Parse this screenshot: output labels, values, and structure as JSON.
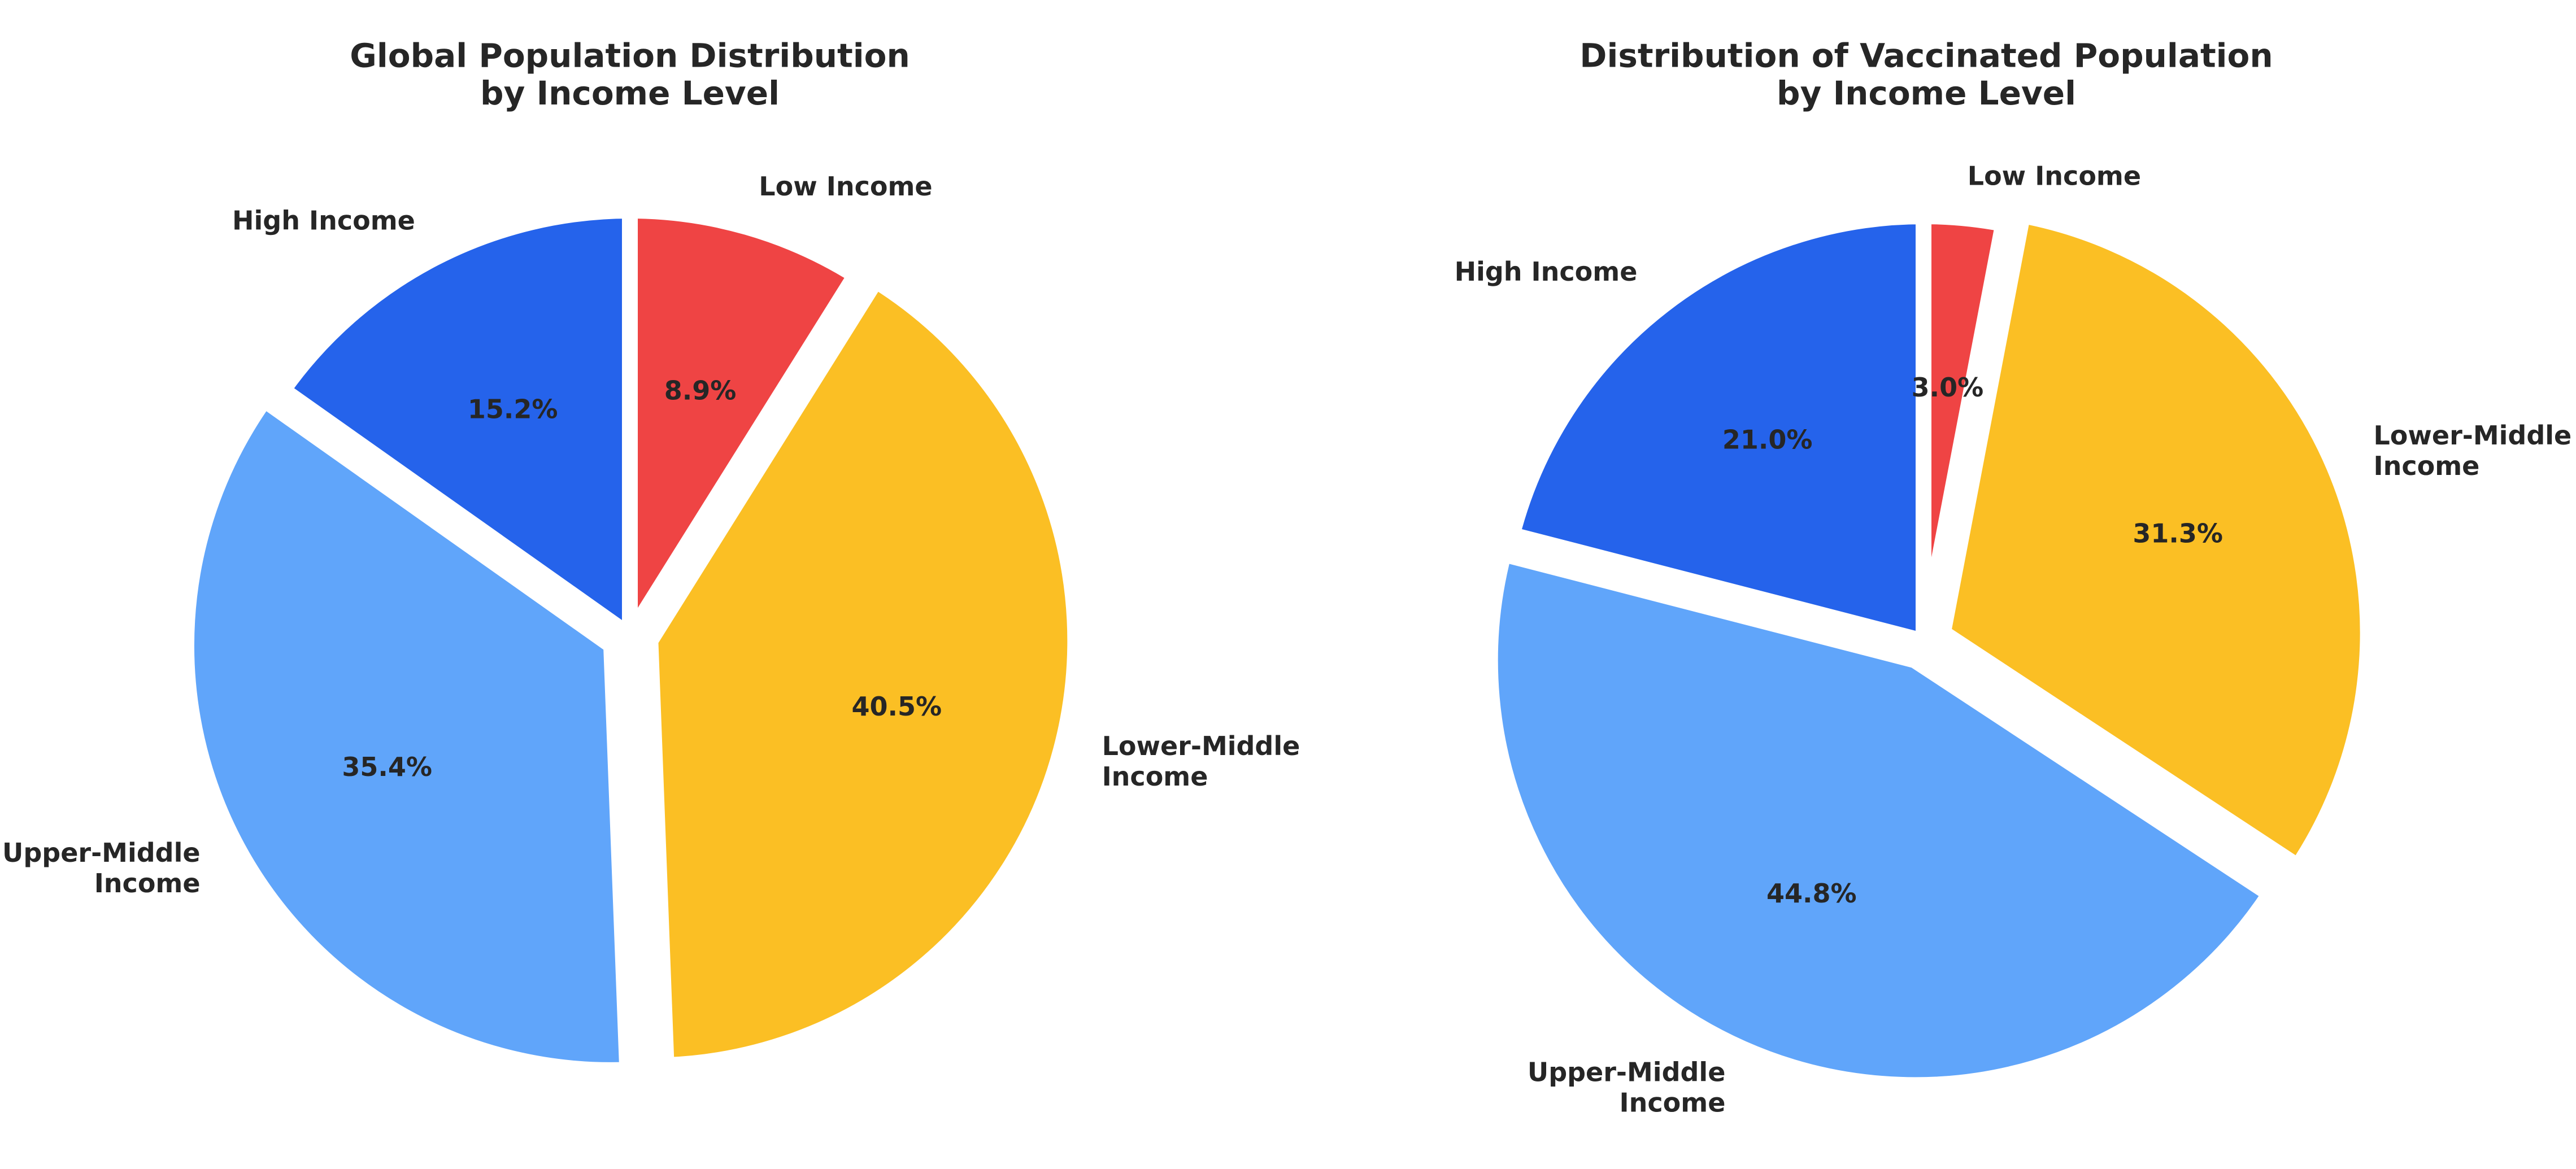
{
  "chart_data": [
    {
      "type": "pie",
      "title": [
        "Global Population Distribution",
        "by Income Level"
      ],
      "slices": [
        {
          "label": [
            "High Income"
          ],
          "value": 15.2,
          "pct_label": "15.2%",
          "color": "#2563eb",
          "explode": 0.0
        },
        {
          "label": [
            "Upper-Middle",
            "Income"
          ],
          "value": 35.4,
          "pct_label": "35.4%",
          "color": "#60a5fa",
          "explode": 0.05
        },
        {
          "label": [
            "Lower-Middle",
            "Income"
          ],
          "value": 40.5,
          "pct_label": "40.5%",
          "color": "#fbbf24",
          "explode": 0.05
        },
        {
          "label": [
            "Low Income"
          ],
          "value": 8.9,
          "pct_label": "8.9%",
          "color": "#ef4444",
          "explode": 0.0
        }
      ],
      "start_angle": 90,
      "direction": "counterclockwise"
    },
    {
      "type": "pie",
      "title": [
        "Distribution of Vaccinated Population",
        "by Income Level"
      ],
      "slices": [
        {
          "label": [
            "High Income"
          ],
          "value": 21.0,
          "pct_label": "21.0%",
          "color": "#2563eb",
          "explode": 0.0
        },
        {
          "label": [
            "Upper-Middle",
            "Income"
          ],
          "value": 44.8,
          "pct_label": "44.8%",
          "color": "#60a5fa",
          "explode": 0.05
        },
        {
          "label": [
            "Lower-Middle",
            "Income"
          ],
          "value": 31.3,
          "pct_label": "31.3%",
          "color": "#fbbf24",
          "explode": 0.05
        },
        {
          "label": [
            "Low Income"
          ],
          "value": 3.0,
          "pct_label": "3.0%",
          "color": "#ef4444",
          "explode": 0.0
        }
      ],
      "start_angle": 90,
      "direction": "counterclockwise"
    }
  ]
}
